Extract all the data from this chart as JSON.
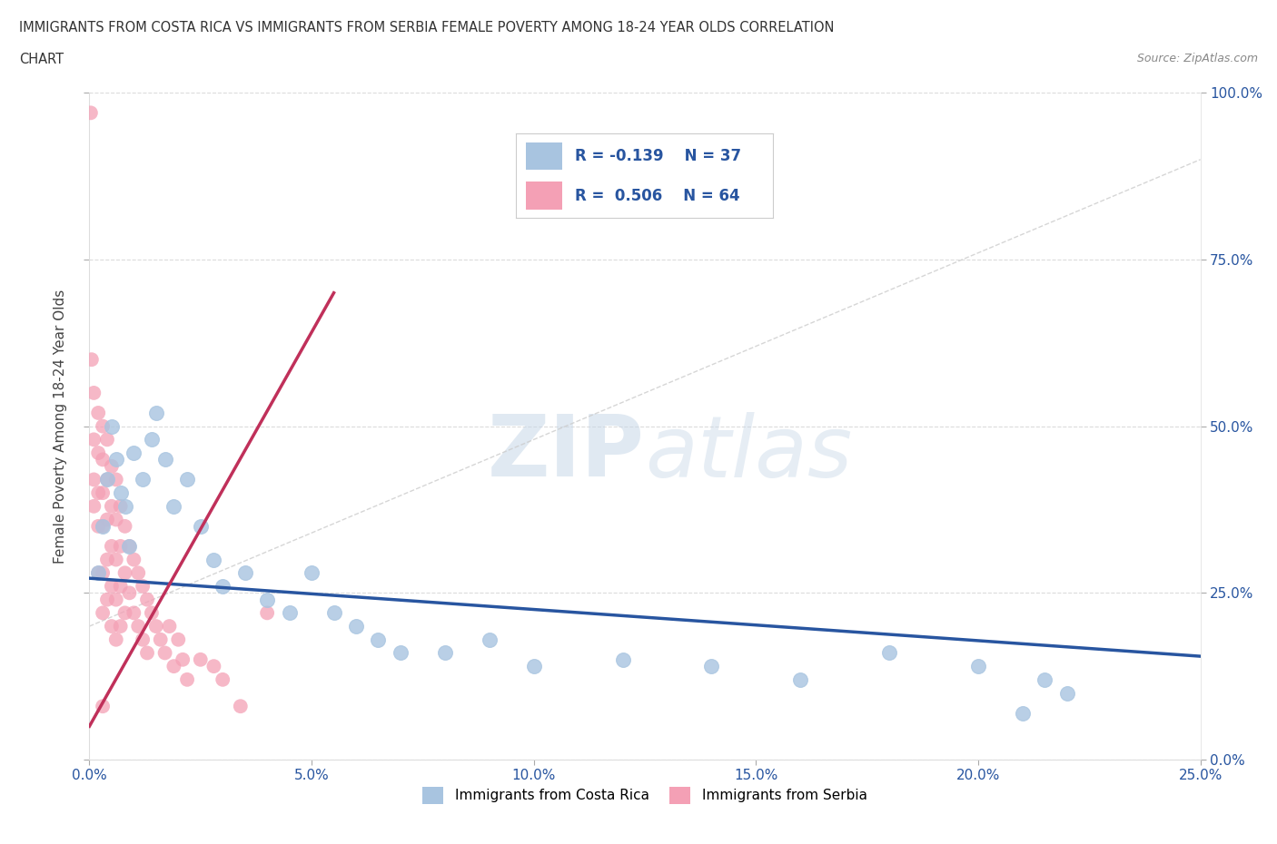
{
  "title_line1": "IMMIGRANTS FROM COSTA RICA VS IMMIGRANTS FROM SERBIA FEMALE POVERTY AMONG 18-24 YEAR OLDS CORRELATION",
  "title_line2": "CHART",
  "source": "Source: ZipAtlas.com",
  "ylabel": "Female Poverty Among 18-24 Year Olds",
  "xlim": [
    0.0,
    0.25
  ],
  "ylim": [
    0.0,
    1.0
  ],
  "xticks": [
    0.0,
    0.05,
    0.1,
    0.15,
    0.2,
    0.25
  ],
  "yticks": [
    0.0,
    0.25,
    0.5,
    0.75,
    1.0
  ],
  "xtick_labels": [
    "0.0%",
    "5.0%",
    "10.0%",
    "15.0%",
    "20.0%",
    "25.0%"
  ],
  "ytick_labels": [
    "0.0%",
    "25.0%",
    "50.0%",
    "75.0%",
    "100.0%"
  ],
  "costa_rica_R": -0.139,
  "costa_rica_N": 37,
  "serbia_R": 0.506,
  "serbia_N": 64,
  "costa_rica_color": "#a8c4e0",
  "serbia_color": "#f4a0b5",
  "costa_rica_line_color": "#2855a0",
  "serbia_line_color": "#c0305a",
  "watermark_zip": "ZIP",
  "watermark_atlas": "atlas",
  "background_color": "#ffffff",
  "blue_line_x": [
    0.0,
    0.25
  ],
  "blue_line_y": [
    0.272,
    0.155
  ],
  "pink_line_x": [
    0.0,
    0.055
  ],
  "pink_line_y": [
    0.05,
    0.7
  ],
  "ref_line_x": [
    0.0,
    0.25
  ],
  "ref_line_y": [
    0.2,
    0.9
  ],
  "costa_rica_x": [
    0.002,
    0.003,
    0.004,
    0.005,
    0.006,
    0.007,
    0.008,
    0.009,
    0.01,
    0.012,
    0.014,
    0.015,
    0.017,
    0.019,
    0.022,
    0.025,
    0.028,
    0.03,
    0.035,
    0.04,
    0.045,
    0.05,
    0.055,
    0.06,
    0.065,
    0.07,
    0.08,
    0.09,
    0.1,
    0.12,
    0.14,
    0.16,
    0.18,
    0.2,
    0.215,
    0.22,
    0.21
  ],
  "costa_rica_y": [
    0.28,
    0.35,
    0.42,
    0.5,
    0.45,
    0.4,
    0.38,
    0.32,
    0.46,
    0.42,
    0.48,
    0.52,
    0.45,
    0.38,
    0.42,
    0.35,
    0.3,
    0.26,
    0.28,
    0.24,
    0.22,
    0.28,
    0.22,
    0.2,
    0.18,
    0.16,
    0.16,
    0.18,
    0.14,
    0.15,
    0.14,
    0.12,
    0.16,
    0.14,
    0.12,
    0.1,
    0.07
  ],
  "serbia_x": [
    0.0003,
    0.0005,
    0.001,
    0.001,
    0.001,
    0.001,
    0.002,
    0.002,
    0.002,
    0.002,
    0.002,
    0.003,
    0.003,
    0.003,
    0.003,
    0.003,
    0.003,
    0.004,
    0.004,
    0.004,
    0.004,
    0.004,
    0.005,
    0.005,
    0.005,
    0.005,
    0.005,
    0.006,
    0.006,
    0.006,
    0.006,
    0.006,
    0.007,
    0.007,
    0.007,
    0.007,
    0.008,
    0.008,
    0.008,
    0.009,
    0.009,
    0.01,
    0.01,
    0.011,
    0.011,
    0.012,
    0.012,
    0.013,
    0.013,
    0.014,
    0.015,
    0.016,
    0.017,
    0.018,
    0.019,
    0.02,
    0.021,
    0.022,
    0.025,
    0.028,
    0.03,
    0.034,
    0.04,
    0.003
  ],
  "serbia_y": [
    0.97,
    0.6,
    0.55,
    0.48,
    0.42,
    0.38,
    0.52,
    0.46,
    0.4,
    0.35,
    0.28,
    0.5,
    0.45,
    0.4,
    0.35,
    0.28,
    0.22,
    0.48,
    0.42,
    0.36,
    0.3,
    0.24,
    0.44,
    0.38,
    0.32,
    0.26,
    0.2,
    0.42,
    0.36,
    0.3,
    0.24,
    0.18,
    0.38,
    0.32,
    0.26,
    0.2,
    0.35,
    0.28,
    0.22,
    0.32,
    0.25,
    0.3,
    0.22,
    0.28,
    0.2,
    0.26,
    0.18,
    0.24,
    0.16,
    0.22,
    0.2,
    0.18,
    0.16,
    0.2,
    0.14,
    0.18,
    0.15,
    0.12,
    0.15,
    0.14,
    0.12,
    0.08,
    0.22,
    0.08
  ]
}
